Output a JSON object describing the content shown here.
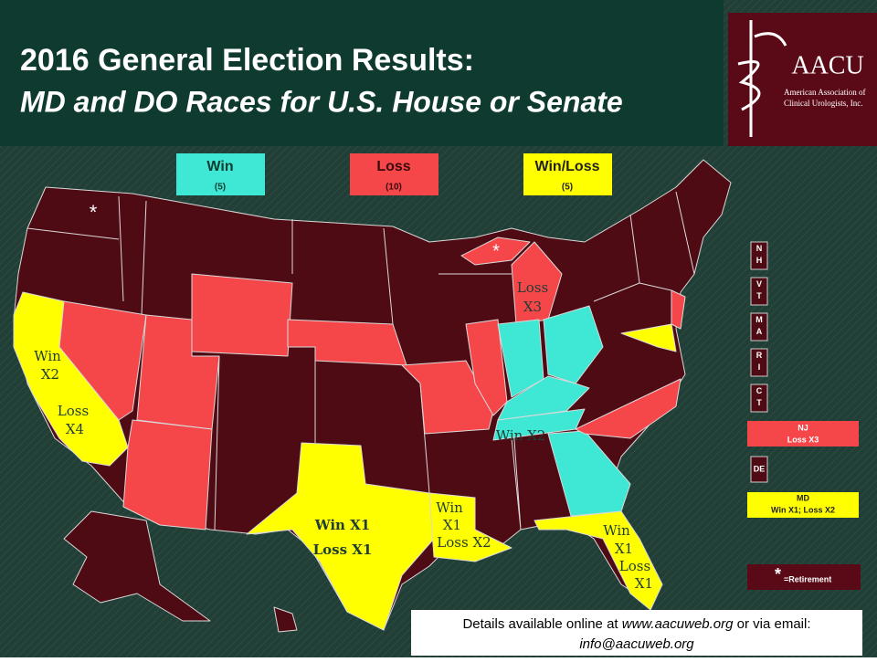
{
  "header": {
    "title_line1": "2016 General Election Results:",
    "title_line2": "MD and DO Races for U.S. House or Senate"
  },
  "logo": {
    "name": "AACU",
    "subtitle_line1": "American Association of",
    "subtitle_line2": "Clinical Urologists, Inc."
  },
  "legend": {
    "items": [
      {
        "label": "Win",
        "count": "(5)"
      },
      {
        "label": "Loss",
        "count": "(10)"
      },
      {
        "label": "Win/Loss",
        "count": "(5)"
      }
    ]
  },
  "map": {
    "labels": [
      {
        "lines": [
          "*"
        ]
      },
      {
        "lines": [
          "*"
        ]
      },
      {
        "lines": [
          "Loss",
          "X3"
        ]
      },
      {
        "lines": [
          "Win",
          "X2"
        ]
      },
      {
        "lines": [
          "Loss",
          "X4"
        ]
      },
      {
        "lines": [
          "Win X2"
        ]
      },
      {
        "lines": [
          "Win X1",
          "Loss X1"
        ]
      },
      {
        "lines": [
          "Win",
          "X1",
          "Loss X2"
        ]
      },
      {
        "lines": [
          "Win",
          "X1",
          "Loss",
          "X1"
        ]
      }
    ]
  },
  "sidebar": {
    "states": [
      "NH",
      "VT",
      "MA",
      "RI",
      "CT"
    ],
    "nj": {
      "state": "NJ",
      "result": "Loss X3"
    },
    "de": "DE",
    "md": {
      "state": "MD",
      "result": "Win X1; Loss X2"
    },
    "retirement": {
      "symbol": "*",
      "text": "=Retirement"
    }
  },
  "footer": {
    "text_before": "Details available online at ",
    "website": "www.aacuweb.org",
    "text_after": " or via email:",
    "email": "info@aacuweb.org"
  }
}
